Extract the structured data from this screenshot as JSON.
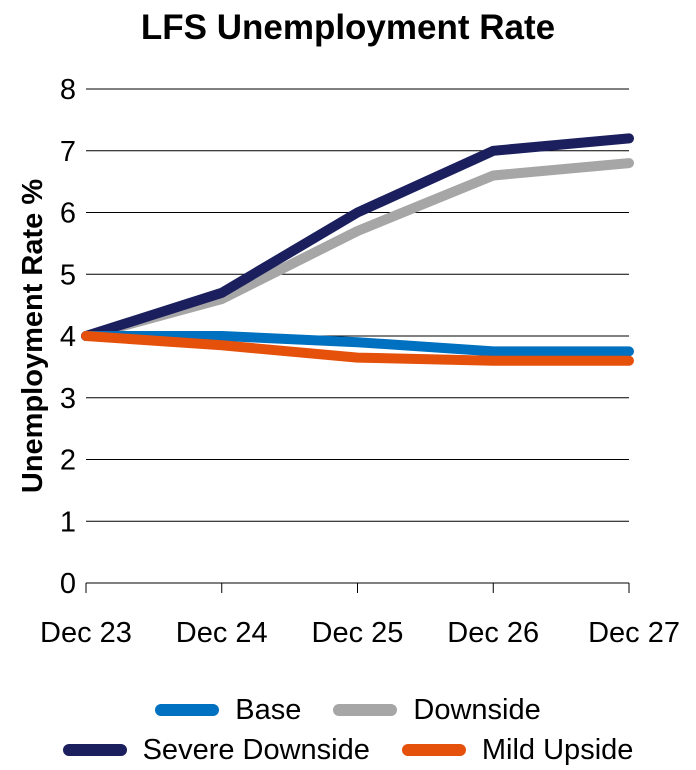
{
  "chart_data": {
    "type": "line",
    "title": "LFS Unemployment Rate",
    "xlabel": "",
    "ylabel": "Unemployment Rate %",
    "categories": [
      "Dec 23",
      "Dec 24",
      "Dec 25",
      "Dec 26",
      "Dec 27"
    ],
    "ylim": [
      0,
      8
    ],
    "yticks": [
      0,
      1,
      2,
      3,
      4,
      5,
      6,
      7,
      8
    ],
    "grid": true,
    "legend_position": "bottom",
    "series": [
      {
        "name": "Base",
        "color": "#0070C0",
        "values": [
          4.0,
          4.0,
          3.9,
          3.75,
          3.75
        ]
      },
      {
        "name": "Downside",
        "color": "#A6A6A6",
        "values": [
          4.0,
          4.6,
          5.7,
          6.6,
          6.8
        ]
      },
      {
        "name": "Severe Downside",
        "color": "#1B1F5E",
        "values": [
          4.0,
          4.7,
          6.0,
          7.0,
          7.2
        ]
      },
      {
        "name": "Mild Upside",
        "color": "#E5500A",
        "values": [
          4.0,
          3.85,
          3.65,
          3.6,
          3.6
        ]
      }
    ],
    "draw_order": [
      1,
      2,
      0,
      3
    ],
    "legend_rows": [
      [
        0,
        1
      ],
      [
        2,
        3
      ]
    ]
  }
}
